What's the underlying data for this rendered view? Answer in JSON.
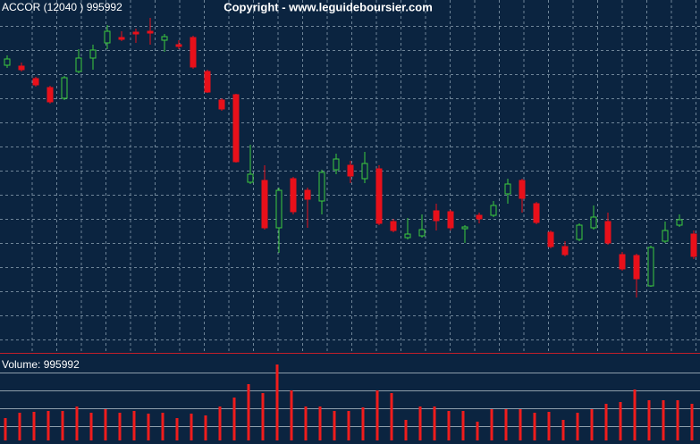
{
  "chart_data": [
    {
      "type": "candlestick",
      "title": "ACCOR (12040 ) 995992",
      "subtitle": "Copyright - www.leguideboursier.com",
      "ylim": [
        0,
        395
      ],
      "ygrid": [
        366,
        339,
        312,
        285,
        258,
        231,
        204,
        177,
        150,
        123,
        96,
        69,
        42,
        15
      ],
      "up_color": "#3ecb3e",
      "down_color": "#e8101a",
      "open": [
        322,
        321,
        307,
        297,
        285,
        315,
        330,
        347,
        353,
        359,
        360,
        350,
        345,
        353,
        315,
        283,
        289,
        191,
        193,
        140,
        195,
        182,
        170,
        205,
        210,
        195,
        206,
        147,
        129,
        131,
        159,
        158,
        139,
        154,
        154,
        178,
        193,
        167,
        135,
        119,
        127,
        140,
        147,
        110,
        109,
        75,
        125,
        143,
        133
      ],
      "high": [
        333,
        325,
        309,
        299,
        310,
        340,
        345,
        367,
        360,
        363,
        375,
        357,
        350,
        355,
        317,
        285,
        290,
        233,
        210,
        185,
        197,
        185,
        205,
        223,
        215,
        225,
        210,
        150,
        151,
        155,
        167,
        160,
        143,
        157,
        170,
        195,
        195,
        169,
        137,
        125,
        145,
        165,
        157,
        113,
        111,
        120,
        147,
        155,
        137
      ],
      "low": [
        319,
        315,
        298,
        279,
        283,
        313,
        317,
        340,
        349,
        347,
        345,
        337,
        340,
        318,
        291,
        271,
        213,
        189,
        138,
        112,
        155,
        140,
        155,
        200,
        190,
        190,
        143,
        135,
        127,
        129,
        137,
        137,
        123,
        145,
        152,
        167,
        157,
        144,
        117,
        108,
        125,
        138,
        121,
        92,
        62,
        74,
        123,
        141,
        105
      ],
      "close": [
        329,
        317,
        300,
        281,
        308,
        330,
        339,
        360,
        351,
        357,
        358,
        354,
        343,
        320,
        292,
        273,
        214,
        200,
        140,
        182,
        158,
        172,
        202,
        217,
        198,
        212,
        145,
        137,
        133,
        138,
        148,
        140,
        141,
        150,
        165,
        189,
        173,
        146,
        119,
        110,
        143,
        152,
        123,
        94,
        83,
        118,
        137,
        149,
        108
      ]
    },
    {
      "type": "bar",
      "title": "Volume: 995992",
      "color": "#f01c1c",
      "ylim": [
        0,
        96
      ],
      "ygrid": [
        76,
        56,
        36,
        16
      ],
      "values": [
        25,
        31,
        32,
        33,
        33,
        38,
        31,
        35,
        31,
        33,
        30,
        31,
        25,
        30,
        28,
        38,
        48,
        63,
        53,
        85,
        56,
        38,
        38,
        33,
        33,
        37,
        56,
        53,
        23,
        38,
        38,
        33,
        33,
        21,
        35,
        35,
        35,
        31,
        32,
        23,
        31,
        35,
        41,
        43,
        57,
        45,
        45,
        45,
        41
      ]
    }
  ]
}
